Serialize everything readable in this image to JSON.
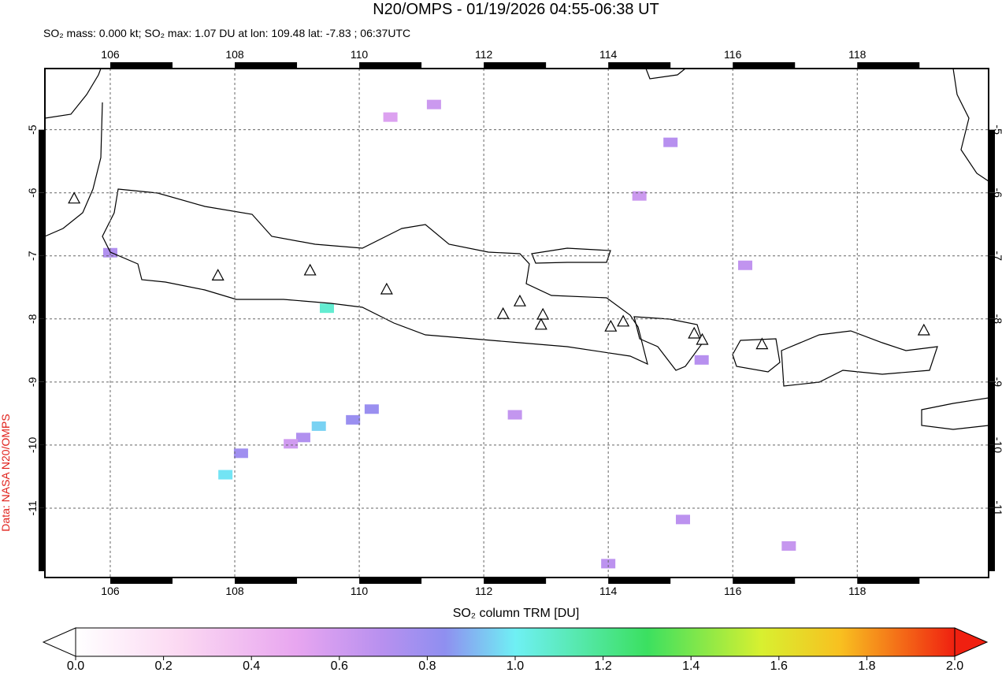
{
  "chart_data": {
    "type": "map",
    "title": "N20/OMPS - 01/19/2026 04:55-06:38 UT",
    "subtitle": "SO₂ mass: 0.000 kt; SO₂ max: 1.07 DU at lon: 109.48 lat: -7.83 ; 06:37UTC",
    "side_label": "Data: NASA N20/OMPS",
    "colorbar_label": "SO₂ column TRM [DU]",
    "xlim": [
      104.95,
      120.11
    ],
    "ylim": [
      -12.1,
      -4.03
    ],
    "xticks": [
      106,
      108,
      110,
      112,
      114,
      116,
      118
    ],
    "yticks": [
      -5,
      -6,
      -7,
      -8,
      -9,
      -10,
      -11
    ],
    "grid": true,
    "colorbar_lim": [
      0,
      2
    ],
    "colorbar_ticks": [
      {
        "value": 0,
        "label": "0.0"
      },
      {
        "value": 0.2,
        "label": "0.2"
      },
      {
        "value": 0.4,
        "label": "0.4"
      },
      {
        "value": 0.6,
        "label": "0.6"
      },
      {
        "value": 0.8,
        "label": "0.8"
      },
      {
        "value": 1,
        "label": "1.0"
      },
      {
        "value": 1.2,
        "label": "1.2"
      },
      {
        "value": 1.4,
        "label": "1.4"
      },
      {
        "value": 1.6,
        "label": "1.6"
      },
      {
        "value": 1.8,
        "label": "1.8"
      },
      {
        "value": 2,
        "label": "2.0"
      }
    ],
    "volcanoes": {
      "lon": [
        105.42,
        107.73,
        109.21,
        110.44,
        112.31,
        112.58,
        112.95,
        112.92,
        114.04,
        114.24,
        115.38,
        115.51,
        116.47,
        119.07
      ],
      "lat": [
        -6.1,
        -7.32,
        -7.24,
        -7.54,
        -7.93,
        -7.73,
        -7.94,
        -8.1,
        -8.13,
        -8.05,
        -8.24,
        -8.34,
        -8.41,
        -8.19
      ]
    },
    "cells": {
      "lon": [
        109.48,
        109.1,
        109.35,
        109.9,
        110.2,
        107.85,
        108.1,
        106.0,
        108.9,
        111.2,
        112.5,
        114.0,
        115.2,
        115.5,
        116.2,
        116.9,
        114.5,
        115.0,
        110.5
      ],
      "lat": [
        -7.83,
        -9.88,
        -9.7,
        -9.6,
        -9.43,
        -10.47,
        -10.13,
        -6.95,
        -9.98,
        -4.6,
        -9.52,
        -11.88,
        -11.18,
        -8.65,
        -7.15,
        -11.6,
        -6.05,
        -5.2,
        -4.8
      ],
      "values": [
        1.07,
        0.72,
        0.95,
        0.8,
        0.8,
        0.98,
        0.78,
        0.72,
        0.6,
        0.62,
        0.65,
        0.68,
        0.68,
        0.7,
        0.66,
        0.64,
        0.62,
        0.7,
        0.55
      ]
    }
  }
}
